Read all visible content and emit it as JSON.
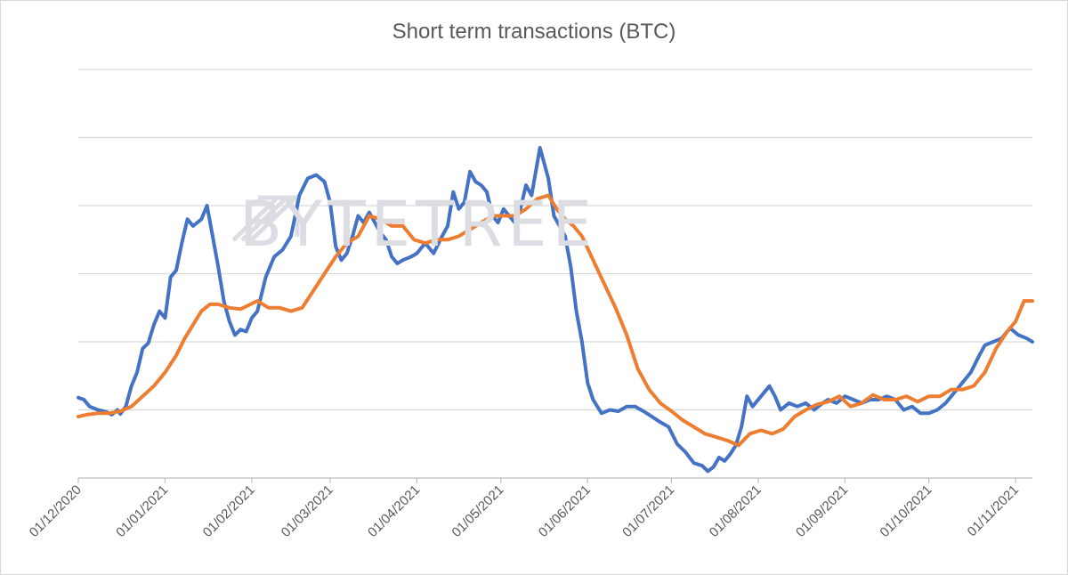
{
  "chart_data": {
    "type": "line",
    "title": "Short term transactions (BTC)",
    "xlabel": "",
    "ylabel": "",
    "x_range": [
      "2020-12-01",
      "2021-11-07"
    ],
    "y_scale_note": "no y tick labels shown; values expressed in gridline units (0 = bottom axis, 6 = top gridline)",
    "ylim": [
      0,
      6
    ],
    "grid": true,
    "legend": "none",
    "x_tick_labels": [
      "01/12/2020",
      "01/01/2021",
      "01/02/2021",
      "01/03/2021",
      "01/04/2021",
      "01/05/2021",
      "01/06/2021",
      "01/07/2021",
      "01/08/2021",
      "01/09/2021",
      "01/10/2021",
      "01/11/2021"
    ],
    "x_tick_dates": [
      "2020-12-01",
      "2021-01-01",
      "2021-02-01",
      "2021-03-01",
      "2021-04-01",
      "2021-05-01",
      "2021-06-01",
      "2021-07-01",
      "2021-08-01",
      "2021-09-01",
      "2021-10-01",
      "2021-11-01"
    ],
    "series": [
      {
        "color": "#4472c4",
        "points": [
          [
            "2020-12-01",
            1.18
          ],
          [
            "2020-12-03",
            1.15
          ],
          [
            "2020-12-05",
            1.05
          ],
          [
            "2020-12-08",
            1.0
          ],
          [
            "2020-12-11",
            0.97
          ],
          [
            "2020-12-13",
            0.93
          ],
          [
            "2020-12-15",
            1.0
          ],
          [
            "2020-12-16",
            0.94
          ],
          [
            "2020-12-18",
            1.05
          ],
          [
            "2020-12-20",
            1.35
          ],
          [
            "2020-12-22",
            1.55
          ],
          [
            "2020-12-24",
            1.9
          ],
          [
            "2020-12-26",
            1.98
          ],
          [
            "2020-12-28",
            2.25
          ],
          [
            "2020-12-30",
            2.45
          ],
          [
            "2021-01-01",
            2.35
          ],
          [
            "2021-01-03",
            2.95
          ],
          [
            "2021-01-05",
            3.05
          ],
          [
            "2021-01-07",
            3.45
          ],
          [
            "2021-01-09",
            3.8
          ],
          [
            "2021-01-11",
            3.7
          ],
          [
            "2021-01-14",
            3.8
          ],
          [
            "2021-01-16",
            4.0
          ],
          [
            "2021-01-18",
            3.55
          ],
          [
            "2021-01-20",
            3.1
          ],
          [
            "2021-01-22",
            2.6
          ],
          [
            "2021-01-24",
            2.3
          ],
          [
            "2021-01-26",
            2.1
          ],
          [
            "2021-01-28",
            2.18
          ],
          [
            "2021-01-30",
            2.15
          ],
          [
            "2021-02-01",
            2.35
          ],
          [
            "2021-02-03",
            2.45
          ],
          [
            "2021-02-06",
            2.95
          ],
          [
            "2021-02-09",
            3.25
          ],
          [
            "2021-02-12",
            3.35
          ],
          [
            "2021-02-15",
            3.55
          ],
          [
            "2021-02-18",
            4.15
          ],
          [
            "2021-02-21",
            4.4
          ],
          [
            "2021-02-24",
            4.45
          ],
          [
            "2021-02-27",
            4.35
          ],
          [
            "2021-03-01",
            4.05
          ],
          [
            "2021-03-03",
            3.4
          ],
          [
            "2021-03-05",
            3.2
          ],
          [
            "2021-03-07",
            3.3
          ],
          [
            "2021-03-09",
            3.55
          ],
          [
            "2021-03-11",
            3.85
          ],
          [
            "2021-03-13",
            3.75
          ],
          [
            "2021-03-15",
            3.9
          ],
          [
            "2021-03-17",
            3.75
          ],
          [
            "2021-03-19",
            3.6
          ],
          [
            "2021-03-21",
            3.5
          ],
          [
            "2021-03-23",
            3.25
          ],
          [
            "2021-03-25",
            3.15
          ],
          [
            "2021-03-27",
            3.2
          ],
          [
            "2021-03-30",
            3.25
          ],
          [
            "2021-04-01",
            3.3
          ],
          [
            "2021-04-04",
            3.45
          ],
          [
            "2021-04-07",
            3.3
          ],
          [
            "2021-04-10",
            3.55
          ],
          [
            "2021-04-12",
            3.7
          ],
          [
            "2021-04-14",
            4.2
          ],
          [
            "2021-04-16",
            3.95
          ],
          [
            "2021-04-18",
            4.05
          ],
          [
            "2021-04-20",
            4.5
          ],
          [
            "2021-04-22",
            4.35
          ],
          [
            "2021-04-24",
            4.3
          ],
          [
            "2021-04-26",
            4.2
          ],
          [
            "2021-04-28",
            3.85
          ],
          [
            "2021-04-30",
            3.75
          ],
          [
            "2021-05-02",
            3.95
          ],
          [
            "2021-05-04",
            3.85
          ],
          [
            "2021-05-06",
            3.75
          ],
          [
            "2021-05-08",
            3.95
          ],
          [
            "2021-05-10",
            4.3
          ],
          [
            "2021-05-12",
            4.15
          ],
          [
            "2021-05-15",
            4.85
          ],
          [
            "2021-05-18",
            4.4
          ],
          [
            "2021-05-20",
            3.85
          ],
          [
            "2021-05-22",
            3.7
          ],
          [
            "2021-05-24",
            3.55
          ],
          [
            "2021-05-26",
            3.1
          ],
          [
            "2021-05-28",
            2.45
          ],
          [
            "2021-05-30",
            2.0
          ],
          [
            "2021-06-01",
            1.4
          ],
          [
            "2021-06-03",
            1.15
          ],
          [
            "2021-06-06",
            0.95
          ],
          [
            "2021-06-09",
            1.0
          ],
          [
            "2021-06-12",
            0.98
          ],
          [
            "2021-06-15",
            1.05
          ],
          [
            "2021-06-18",
            1.05
          ],
          [
            "2021-06-21",
            0.98
          ],
          [
            "2021-06-24",
            0.9
          ],
          [
            "2021-06-27",
            0.82
          ],
          [
            "2021-06-30",
            0.75
          ],
          [
            "2021-07-03",
            0.5
          ],
          [
            "2021-07-06",
            0.38
          ],
          [
            "2021-07-09",
            0.22
          ],
          [
            "2021-07-12",
            0.18
          ],
          [
            "2021-07-14",
            0.1
          ],
          [
            "2021-07-16",
            0.16
          ],
          [
            "2021-07-18",
            0.3
          ],
          [
            "2021-07-20",
            0.25
          ],
          [
            "2021-07-22",
            0.35
          ],
          [
            "2021-07-24",
            0.48
          ],
          [
            "2021-07-26",
            0.75
          ],
          [
            "2021-07-28",
            1.2
          ],
          [
            "2021-07-30",
            1.05
          ],
          [
            "2021-08-02",
            1.2
          ],
          [
            "2021-08-05",
            1.35
          ],
          [
            "2021-08-07",
            1.2
          ],
          [
            "2021-08-09",
            1.0
          ],
          [
            "2021-08-12",
            1.1
          ],
          [
            "2021-08-15",
            1.05
          ],
          [
            "2021-08-18",
            1.1
          ],
          [
            "2021-08-21",
            1.0
          ],
          [
            "2021-08-24",
            1.1
          ],
          [
            "2021-08-26",
            1.15
          ],
          [
            "2021-08-29",
            1.1
          ],
          [
            "2021-09-01",
            1.2
          ],
          [
            "2021-09-04",
            1.15
          ],
          [
            "2021-09-07",
            1.1
          ],
          [
            "2021-09-10",
            1.15
          ],
          [
            "2021-09-13",
            1.15
          ],
          [
            "2021-09-16",
            1.2
          ],
          [
            "2021-09-19",
            1.15
          ],
          [
            "2021-09-22",
            1.0
          ],
          [
            "2021-09-25",
            1.05
          ],
          [
            "2021-09-28",
            0.95
          ],
          [
            "2021-10-01",
            0.95
          ],
          [
            "2021-10-04",
            1.0
          ],
          [
            "2021-10-07",
            1.1
          ],
          [
            "2021-10-10",
            1.25
          ],
          [
            "2021-10-13",
            1.4
          ],
          [
            "2021-10-16",
            1.55
          ],
          [
            "2021-10-19",
            1.8
          ],
          [
            "2021-10-21",
            1.95
          ],
          [
            "2021-10-24",
            2.0
          ],
          [
            "2021-10-27",
            2.05
          ],
          [
            "2021-10-30",
            2.2
          ],
          [
            "2021-11-02",
            2.1
          ],
          [
            "2021-11-05",
            2.05
          ],
          [
            "2021-11-07",
            2.0
          ]
        ]
      },
      {
        "color": "#ed7d31",
        "points": [
          [
            "2020-12-01",
            0.9
          ],
          [
            "2020-12-04",
            0.93
          ],
          [
            "2020-12-08",
            0.95
          ],
          [
            "2020-12-12",
            0.95
          ],
          [
            "2020-12-16",
            0.98
          ],
          [
            "2020-12-20",
            1.05
          ],
          [
            "2020-12-24",
            1.2
          ],
          [
            "2020-12-28",
            1.35
          ],
          [
            "2021-01-01",
            1.55
          ],
          [
            "2021-01-05",
            1.8
          ],
          [
            "2021-01-08",
            2.05
          ],
          [
            "2021-01-11",
            2.25
          ],
          [
            "2021-01-14",
            2.45
          ],
          [
            "2021-01-17",
            2.55
          ],
          [
            "2021-01-20",
            2.55
          ],
          [
            "2021-01-24",
            2.5
          ],
          [
            "2021-01-28",
            2.48
          ],
          [
            "2021-01-30",
            2.52
          ],
          [
            "2021-02-03",
            2.6
          ],
          [
            "2021-02-07",
            2.5
          ],
          [
            "2021-02-11",
            2.5
          ],
          [
            "2021-02-15",
            2.45
          ],
          [
            "2021-02-19",
            2.5
          ],
          [
            "2021-02-23",
            2.75
          ],
          [
            "2021-02-27",
            3.0
          ],
          [
            "2021-03-03",
            3.25
          ],
          [
            "2021-03-07",
            3.45
          ],
          [
            "2021-03-11",
            3.55
          ],
          [
            "2021-03-15",
            3.85
          ],
          [
            "2021-03-19",
            3.8
          ],
          [
            "2021-03-23",
            3.7
          ],
          [
            "2021-03-27",
            3.7
          ],
          [
            "2021-03-31",
            3.5
          ],
          [
            "2021-04-04",
            3.45
          ],
          [
            "2021-04-08",
            3.5
          ],
          [
            "2021-04-12",
            3.5
          ],
          [
            "2021-04-16",
            3.55
          ],
          [
            "2021-04-20",
            3.65
          ],
          [
            "2021-04-24",
            3.75
          ],
          [
            "2021-04-28",
            3.85
          ],
          [
            "2021-05-02",
            3.85
          ],
          [
            "2021-05-06",
            3.85
          ],
          [
            "2021-05-10",
            3.95
          ],
          [
            "2021-05-14",
            4.1
          ],
          [
            "2021-05-18",
            4.15
          ],
          [
            "2021-05-21",
            3.95
          ],
          [
            "2021-05-24",
            3.8
          ],
          [
            "2021-05-27",
            3.7
          ],
          [
            "2021-05-30",
            3.55
          ],
          [
            "2021-06-03",
            3.2
          ],
          [
            "2021-06-07",
            2.85
          ],
          [
            "2021-06-11",
            2.5
          ],
          [
            "2021-06-15",
            2.1
          ],
          [
            "2021-06-19",
            1.6
          ],
          [
            "2021-06-23",
            1.3
          ],
          [
            "2021-06-27",
            1.1
          ],
          [
            "2021-07-01",
            0.98
          ],
          [
            "2021-07-05",
            0.85
          ],
          [
            "2021-07-09",
            0.75
          ],
          [
            "2021-07-13",
            0.65
          ],
          [
            "2021-07-17",
            0.6
          ],
          [
            "2021-07-21",
            0.55
          ],
          [
            "2021-07-25",
            0.48
          ],
          [
            "2021-07-29",
            0.65
          ],
          [
            "2021-08-02",
            0.7
          ],
          [
            "2021-08-06",
            0.65
          ],
          [
            "2021-08-10",
            0.72
          ],
          [
            "2021-08-14",
            0.9
          ],
          [
            "2021-08-18",
            1.0
          ],
          [
            "2021-08-22",
            1.08
          ],
          [
            "2021-08-26",
            1.12
          ],
          [
            "2021-08-30",
            1.2
          ],
          [
            "2021-09-03",
            1.05
          ],
          [
            "2021-09-07",
            1.1
          ],
          [
            "2021-09-11",
            1.22
          ],
          [
            "2021-09-15",
            1.15
          ],
          [
            "2021-09-19",
            1.15
          ],
          [
            "2021-09-23",
            1.2
          ],
          [
            "2021-09-27",
            1.12
          ],
          [
            "2021-10-01",
            1.2
          ],
          [
            "2021-10-05",
            1.2
          ],
          [
            "2021-10-09",
            1.3
          ],
          [
            "2021-10-13",
            1.3
          ],
          [
            "2021-10-17",
            1.35
          ],
          [
            "2021-10-21",
            1.55
          ],
          [
            "2021-10-25",
            1.9
          ],
          [
            "2021-10-29",
            2.15
          ],
          [
            "2021-11-01",
            2.3
          ],
          [
            "2021-11-04",
            2.6
          ],
          [
            "2021-11-07",
            2.6
          ]
        ]
      }
    ]
  },
  "watermark": {
    "text": "BYTETREE",
    "icon": "bytetree-arrow-logo",
    "color": "#dcdde3"
  }
}
